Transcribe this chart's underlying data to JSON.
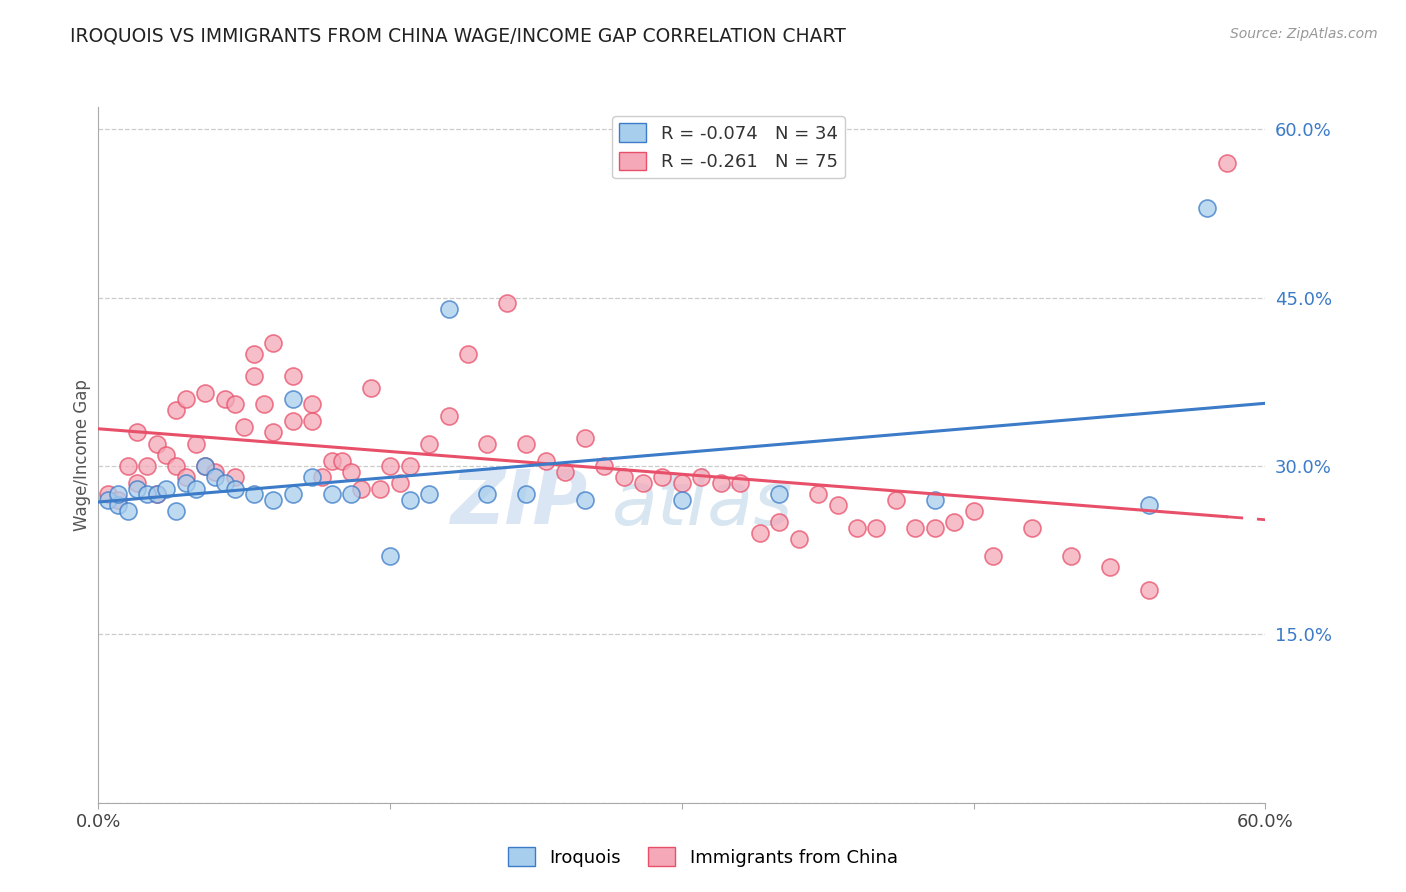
{
  "title": "IROQUOIS VS IMMIGRANTS FROM CHINA WAGE/INCOME GAP CORRELATION CHART",
  "source": "Source: ZipAtlas.com",
  "ylabel": "Wage/Income Gap",
  "legend_label1": "Iroquois",
  "legend_label2": "Immigrants from China",
  "r1": -0.074,
  "n1": 34,
  "r2": -0.261,
  "n2": 75,
  "xlim": [
    0.0,
    0.6
  ],
  "ylim": [
    0.0,
    0.62
  ],
  "yticks": [
    0.0,
    0.15,
    0.3,
    0.45,
    0.6
  ],
  "ytick_labels": [
    "",
    "15.0%",
    "30.0%",
    "45.0%",
    "60.0%"
  ],
  "color_blue": "#A8CEED",
  "color_pink": "#F4A8B8",
  "color_blue_line": "#3B7BC8",
  "color_pink_line": "#E8506A",
  "watermark_zip": "ZIP",
  "watermark_atlas": "atlas",
  "iroquois_x": [
    0.005,
    0.01,
    0.01,
    0.015,
    0.02,
    0.025,
    0.03,
    0.035,
    0.04,
    0.045,
    0.05,
    0.055,
    0.06,
    0.065,
    0.07,
    0.08,
    0.09,
    0.1,
    0.1,
    0.11,
    0.12,
    0.13,
    0.15,
    0.16,
    0.17,
    0.18,
    0.2,
    0.22,
    0.25,
    0.3,
    0.35,
    0.43,
    0.54,
    0.57
  ],
  "iroquois_y": [
    0.27,
    0.265,
    0.275,
    0.26,
    0.28,
    0.275,
    0.275,
    0.28,
    0.26,
    0.285,
    0.28,
    0.3,
    0.29,
    0.285,
    0.28,
    0.275,
    0.27,
    0.275,
    0.36,
    0.29,
    0.275,
    0.275,
    0.22,
    0.27,
    0.275,
    0.44,
    0.275,
    0.275,
    0.27,
    0.27,
    0.275,
    0.27,
    0.265,
    0.53
  ],
  "china_x": [
    0.005,
    0.01,
    0.015,
    0.02,
    0.02,
    0.025,
    0.03,
    0.03,
    0.035,
    0.04,
    0.04,
    0.045,
    0.045,
    0.05,
    0.055,
    0.055,
    0.06,
    0.065,
    0.07,
    0.07,
    0.075,
    0.08,
    0.08,
    0.085,
    0.09,
    0.09,
    0.1,
    0.1,
    0.11,
    0.11,
    0.115,
    0.12,
    0.125,
    0.13,
    0.135,
    0.14,
    0.145,
    0.15,
    0.155,
    0.16,
    0.17,
    0.18,
    0.19,
    0.2,
    0.21,
    0.22,
    0.23,
    0.24,
    0.25,
    0.26,
    0.27,
    0.28,
    0.29,
    0.3,
    0.31,
    0.32,
    0.33,
    0.34,
    0.35,
    0.36,
    0.37,
    0.38,
    0.39,
    0.4,
    0.41,
    0.42,
    0.43,
    0.44,
    0.45,
    0.46,
    0.48,
    0.5,
    0.52,
    0.54,
    0.58
  ],
  "china_y": [
    0.275,
    0.27,
    0.3,
    0.33,
    0.285,
    0.3,
    0.32,
    0.275,
    0.31,
    0.35,
    0.3,
    0.36,
    0.29,
    0.32,
    0.365,
    0.3,
    0.295,
    0.36,
    0.355,
    0.29,
    0.335,
    0.4,
    0.38,
    0.355,
    0.41,
    0.33,
    0.38,
    0.34,
    0.355,
    0.34,
    0.29,
    0.305,
    0.305,
    0.295,
    0.28,
    0.37,
    0.28,
    0.3,
    0.285,
    0.3,
    0.32,
    0.345,
    0.4,
    0.32,
    0.445,
    0.32,
    0.305,
    0.295,
    0.325,
    0.3,
    0.29,
    0.285,
    0.29,
    0.285,
    0.29,
    0.285,
    0.285,
    0.24,
    0.25,
    0.235,
    0.275,
    0.265,
    0.245,
    0.245,
    0.27,
    0.245,
    0.245,
    0.25,
    0.26,
    0.22,
    0.245,
    0.22,
    0.21,
    0.19,
    0.57
  ]
}
